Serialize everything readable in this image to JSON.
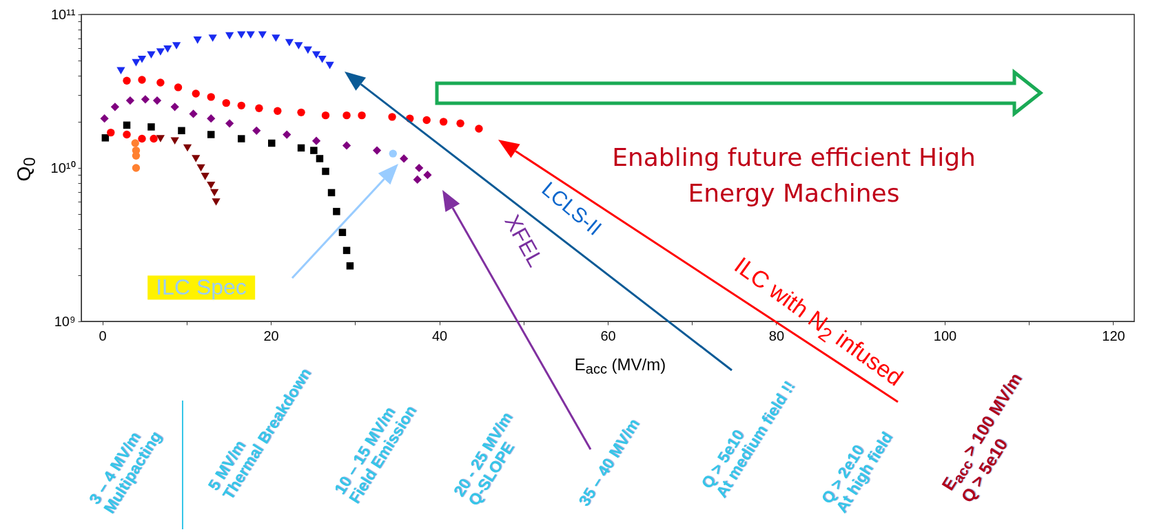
{
  "chart_data": {
    "type": "scatter",
    "xlabel": "E$_{acc}$ (MV/m)",
    "ylabel": "Q$_{0}$",
    "log": "y",
    "grid": false,
    "xlim": [
      -2.5,
      122.5
    ],
    "xticks": [
      0,
      {
        "value": 10,
        "label": null
      },
      20,
      {
        "value": 30,
        "label": null
      },
      40,
      {
        "value": 50,
        "label": null
      },
      60,
      {
        "value": 70,
        "label": null
      },
      80,
      {
        "value": 90,
        "label": null
      },
      100,
      {
        "value": 110,
        "label": null
      },
      120
    ],
    "ylim": [
      1000000000.0,
      100000000000.0
    ],
    "yticks": [
      {
        "value": 1000000000.0,
        "label": "10⁹"
      },
      {
        "value": 2000000000.0,
        "label": null
      },
      {
        "value": 3000000000.0,
        "label": null
      },
      {
        "value": 4000000000.0,
        "label": null
      },
      {
        "value": 5000000000.0,
        "label": null
      },
      {
        "value": 6000000000.0,
        "label": null
      },
      {
        "value": 7000000000.0,
        "label": null
      },
      {
        "value": 8000000000.0,
        "label": null
      },
      {
        "value": 9000000000.0,
        "label": null
      },
      {
        "value": 10000000000.0,
        "label": "10¹⁰"
      },
      {
        "value": 20000000000.0,
        "label": null
      },
      {
        "value": 30000000000.0,
        "label": null
      },
      {
        "value": 40000000000.0,
        "label": null
      },
      {
        "value": 50000000000.0,
        "label": null
      },
      {
        "value": 60000000000.0,
        "label": null
      },
      {
        "value": 70000000000.0,
        "label": null
      },
      {
        "value": 80000000000.0,
        "label": null
      },
      {
        "value": 90000000000.0,
        "label": null
      },
      {
        "value": 100000000000.0,
        "label": "10¹¹"
      }
    ],
    "series": [
      {
        "color": "#1a2cf0",
        "marker": "triangle",
        "x": [
          2.2,
          4.0,
          4.7,
          5.8,
          6.9,
          7.75,
          8.8,
          11.3,
          13.1,
          15.1,
          16.5,
          17.6,
          19,
          20.6,
          22.2,
          23.3,
          24.4,
          25.4,
          26.1,
          27
        ],
        "values": [
          43000000000.0,
          48500000000.0,
          51000000000.0,
          54500000000.0,
          57000000000.0,
          59500000000.0,
          62500000000.0,
          68000000000.0,
          70000000000.0,
          72500000000.0,
          73500000000.0,
          73500000000.0,
          73500000000.0,
          70000000000.0,
          65500000000.0,
          62500000000.0,
          58500000000.0,
          54500000000.0,
          51000000000.0,
          46500000000.0
        ]
      },
      {
        "color": "#ff0000",
        "marker": "circle",
        "x": [
          2.9,
          4.7,
          6.9,
          9.0,
          11.1,
          12.9,
          14.7,
          16.5,
          18.6,
          20.8,
          23.6,
          26.5,
          29,
          30.8,
          34.4,
          36.5,
          38.5,
          40.5,
          42.5,
          44.7
        ],
        "values": [
          37000000000.0,
          37500000000.0,
          36000000000.0,
          33500000000.0,
          30500000000.0,
          29000000000.0,
          26500000000.0,
          25500000000.0,
          24500000000.0,
          23500000000.0,
          23000000000.0,
          22000000000.0,
          22000000000.0,
          22000000000.0,
          21500000000.0,
          21000000000.0,
          20500000000.0,
          20000000000.0,
          19500000000.0,
          18000000000.0
        ]
      },
      {
        "color": "#800080",
        "marker": "diamond",
        "x": [
          0.25,
          1.5,
          3.3,
          5.1,
          6.5,
          8.6,
          10.8,
          12.9,
          15.1,
          18.3,
          21.9,
          25.4,
          29,
          32.6,
          35.8,
          37.6,
          38.6,
          37.4
        ],
        "values": [
          21000000000.0,
          25000000000.0,
          27500000000.0,
          28000000000.0,
          27500000000.0,
          25000000000.0,
          22500000000.0,
          21000000000.0,
          19500000000.0,
          17500000000.0,
          16500000000.0,
          15000000000.0,
          14000000000.0,
          13000000000.0,
          11500000000.0,
          10000000000.0,
          9000000000.0,
          8400000000.0
        ]
      },
      {
        "color": "#000000",
        "marker": "square",
        "x": [
          0.35,
          1.0,
          2.9,
          5.8,
          9.4,
          12.9,
          16.5,
          20.1,
          23.6,
          25.1,
          25.8,
          26.5,
          27.2,
          27.8,
          28.5,
          29.0,
          29.4
        ],
        "values": [
          15700000000.0,
          null,
          19000000000.0,
          18500000000.0,
          17500000000.0,
          16500000000.0,
          15500000000.0,
          14500000000.0,
          13500000000.0,
          13000000000.0,
          11500000000.0,
          9500000000.0,
          6900000000.0,
          5200000000.0,
          3800000000.0,
          2900000000.0,
          2300000000.0
        ]
      },
      {
        "color": "#ff0000",
        "marker": "circle",
        "x": [
          1.0,
          2.9,
          4.7,
          6.1
        ],
        "values": [
          17000000000.0,
          16500000000.0,
          15500000000.0,
          15500000000.0
        ]
      },
      {
        "color": "#7f0000",
        "marker": "triangle",
        "x": [
          6.9,
          8.6,
          10.1,
          11.1,
          11.7,
          12.2,
          12.9,
          13.3,
          13.5
        ],
        "values": [
          15500000000.0,
          15000000000.0,
          13500000000.0,
          11500000000.0,
          10000000000.0,
          8800000000.0,
          7700000000.0,
          6900000000.0,
          6000000000.0
        ]
      },
      {
        "color": "#ff8030",
        "marker": "circle",
        "x": [
          3.9,
          4.0,
          4.0,
          4.0
        ],
        "values": [
          14500000000.0,
          13000000000.0,
          12000000000.0,
          10000000000.0
        ]
      },
      {
        "color": "#99ccff",
        "marker": "circle",
        "x": [
          34.5
        ],
        "values": [
          12400000000.0
        ]
      }
    ],
    "annotations": [
      "ILC Spec",
      "Enabling future efficient High\nEnergy Machines",
      "LCLS-II",
      "XFEL",
      "ILC with N$_{2}$ infused",
      "3 – 4 MV/m\nMultipacting",
      "5 MV/m\nThermal Breakdown",
      "10 – 15 MV/m\nField Emission",
      "20 - 25 MV/m\nQ-SLOPE",
      "35 – 40 MV/m",
      "Q > 5e10\nAt medium field !!",
      "Q > 2e10\nAt high field",
      "E$_{acc}$ > 100 MV/m\nQ > 5e10"
    ]
  }
}
